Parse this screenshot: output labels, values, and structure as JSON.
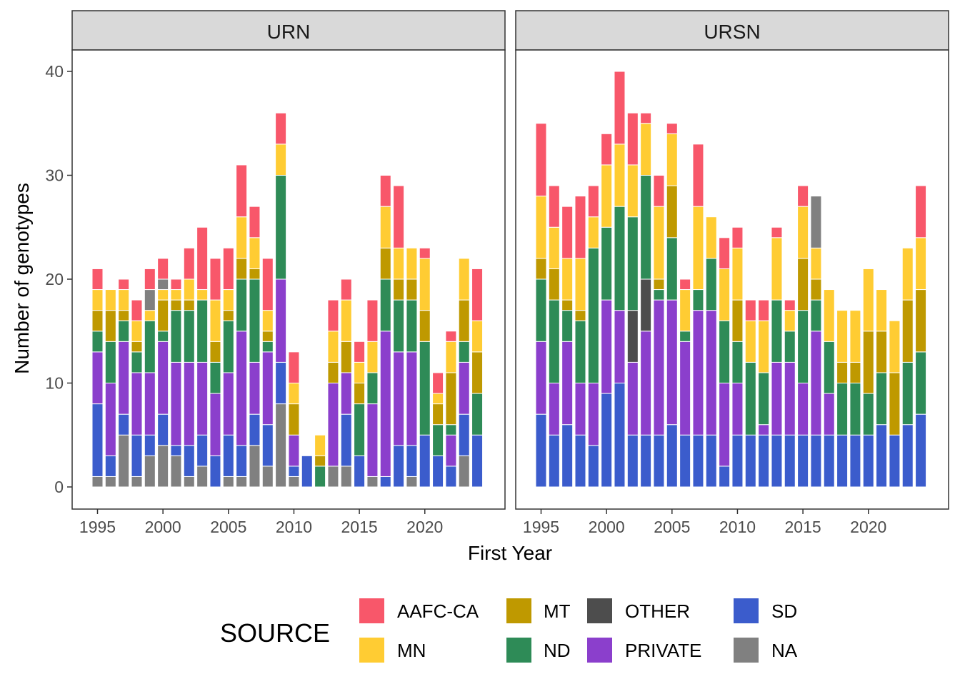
{
  "chart_data": {
    "type": "bar",
    "stacked": true,
    "xlabel": "First Year",
    "ylabel": "Number of genotypes",
    "xlim": [
      1993.1,
      2026.0
    ],
    "ylim": [
      -2,
      43
    ],
    "x_ticks": [
      1995,
      2000,
      2005,
      2010,
      2015,
      2020
    ],
    "y_ticks": [
      0,
      10,
      20,
      30,
      40
    ],
    "stack_order": [
      "NA",
      "SD",
      "PRIVATE",
      "OTHER",
      "ND",
      "MT",
      "MN",
      "AAFC-CA"
    ],
    "legend": {
      "title": "SOURCE",
      "placement": "bottom",
      "entries": [
        "AAFC-CA",
        "MN",
        "MT",
        "ND",
        "OTHER",
        "PRIVATE",
        "SD",
        "NA"
      ]
    },
    "colors": {
      "AAFC-CA": "#F8576A",
      "MN": "#FFCC33",
      "MT": "#BF9900",
      "ND": "#2E8B57",
      "OTHER": "#4D4D4D",
      "PRIVATE": "#8B3FCC",
      "SD": "#3B5CCC",
      "NA": "#808080"
    },
    "panels": [
      {
        "label": "URN",
        "years": [
          1995,
          1996,
          1997,
          1998,
          1999,
          2000,
          2001,
          2002,
          2003,
          2004,
          2005,
          2006,
          2007,
          2008,
          2009,
          2010,
          2011,
          2012,
          2013,
          2014,
          2015,
          2016,
          2017,
          2018,
          2019,
          2020,
          2021,
          2022,
          2023,
          2024
        ],
        "series": {
          "NA": [
            1,
            1,
            5,
            1,
            3,
            4,
            3,
            1,
            2,
            0,
            1,
            1,
            4,
            2,
            8,
            1,
            0,
            0,
            2,
            2,
            0,
            1,
            0,
            0,
            1,
            0,
            0,
            0,
            3,
            0
          ],
          "SD": [
            7,
            2,
            2,
            4,
            2,
            3,
            1,
            3,
            3,
            3,
            4,
            3,
            3,
            4,
            4,
            1,
            3,
            0,
            0,
            5,
            3,
            0,
            1,
            4,
            3,
            5,
            3,
            2,
            4,
            5
          ],
          "PRIVATE": [
            5,
            7,
            7,
            6,
            6,
            7,
            8,
            8,
            7,
            6,
            6,
            11,
            5,
            7,
            8,
            3,
            0,
            0,
            8,
            4,
            0,
            7,
            14,
            9,
            9,
            0,
            0,
            3,
            5,
            0
          ],
          "OTHER": [
            0,
            0,
            0,
            0,
            0,
            0,
            0,
            0,
            0,
            0,
            0,
            0,
            0,
            0,
            0,
            0,
            0,
            0,
            0,
            0,
            0,
            0,
            0,
            0,
            0,
            0,
            0,
            0,
            0,
            0
          ],
          "ND": [
            2,
            4,
            2,
            2,
            5,
            1,
            5,
            5,
            6,
            3,
            5,
            5,
            8,
            1,
            10,
            0,
            0,
            2,
            0,
            0,
            5,
            3,
            5,
            5,
            5,
            9,
            3,
            1,
            2,
            4
          ],
          "MT": [
            2,
            3,
            1,
            1,
            0,
            3,
            1,
            1,
            0,
            2,
            1,
            2,
            1,
            1,
            0,
            3,
            0,
            1,
            2,
            3,
            2,
            0,
            3,
            2,
            2,
            3,
            2,
            5,
            4,
            4
          ],
          "MN": [
            2,
            2,
            2,
            2,
            1,
            1,
            1,
            2,
            1,
            4,
            2,
            4,
            3,
            2,
            3,
            2,
            0,
            2,
            3,
            4,
            2,
            3,
            4,
            3,
            3,
            5,
            1,
            3,
            4,
            3
          ],
          "NA_top": [
            0,
            0,
            0,
            0,
            2,
            1,
            0,
            0,
            0,
            0,
            0,
            0,
            0,
            0,
            0,
            0,
            0,
            0,
            0,
            0,
            0,
            0,
            0,
            0,
            0,
            0,
            0,
            0,
            0,
            0
          ],
          "AAFC-CA": [
            2,
            0,
            1,
            2,
            2,
            2,
            1,
            3,
            6,
            4,
            4,
            5,
            3,
            5,
            3,
            3,
            0,
            0,
            3,
            2,
            2,
            4,
            3,
            6,
            0,
            1,
            2,
            1,
            0,
            5
          ]
        }
      },
      {
        "label": "URSN",
        "years": [
          1995,
          1996,
          1997,
          1998,
          1999,
          2000,
          2001,
          2002,
          2003,
          2004,
          2005,
          2006,
          2007,
          2008,
          2009,
          2010,
          2011,
          2012,
          2013,
          2014,
          2015,
          2016,
          2017,
          2018,
          2019,
          2020,
          2021,
          2022,
          2023,
          2024
        ],
        "series": {
          "NA": [
            0,
            0,
            0,
            0,
            0,
            0,
            0,
            0,
            0,
            0,
            0,
            0,
            0,
            0,
            0,
            0,
            0,
            0,
            0,
            0,
            0,
            0,
            0,
            0,
            0,
            0,
            0,
            0,
            0,
            0
          ],
          "SD": [
            7,
            5,
            6,
            5,
            4,
            9,
            10,
            5,
            5,
            5,
            6,
            5,
            5,
            5,
            2,
            5,
            5,
            5,
            5,
            5,
            5,
            5,
            5,
            5,
            5,
            5,
            6,
            5,
            6,
            7
          ],
          "PRIVATE": [
            7,
            5,
            8,
            5,
            6,
            9,
            7,
            7,
            10,
            13,
            12,
            9,
            12,
            12,
            8,
            5,
            0,
            1,
            7,
            7,
            5,
            10,
            4,
            0,
            0,
            0,
            0,
            0,
            0,
            0
          ],
          "OTHER": [
            0,
            0,
            0,
            0,
            0,
            0,
            0,
            5,
            5,
            0,
            0,
            0,
            0,
            0,
            0,
            0,
            0,
            0,
            0,
            0,
            0,
            0,
            0,
            0,
            0,
            0,
            0,
            0,
            0,
            0
          ],
          "ND": [
            6,
            8,
            3,
            6,
            13,
            7,
            10,
            9,
            10,
            1,
            6,
            1,
            2,
            5,
            6,
            4,
            7,
            5,
            6,
            3,
            7,
            3,
            5,
            5,
            5,
            4,
            5,
            0,
            6,
            6
          ],
          "MT": [
            2,
            3,
            1,
            1,
            0,
            0,
            0,
            0,
            0,
            1,
            5,
            0,
            0,
            0,
            0,
            4,
            0,
            0,
            0,
            0,
            5,
            2,
            0,
            2,
            2,
            6,
            4,
            6,
            6,
            6
          ],
          "MN": [
            6,
            4,
            4,
            5,
            3,
            6,
            6,
            5,
            5,
            7,
            5,
            4,
            8,
            4,
            5,
            5,
            4,
            5,
            6,
            2,
            5,
            3,
            5,
            5,
            5,
            6,
            4,
            5,
            5,
            5
          ],
          "NA_top": [
            0,
            0,
            0,
            0,
            0,
            0,
            0,
            0,
            0,
            0,
            0,
            0,
            0,
            0,
            0,
            0,
            0,
            0,
            0,
            0,
            0,
            5,
            0,
            0,
            0,
            0,
            0,
            0,
            0,
            0
          ],
          "AAFC-CA": [
            7,
            4,
            5,
            6,
            3,
            3,
            7,
            5,
            1,
            3,
            1,
            1,
            6,
            0,
            3,
            2,
            2,
            2,
            1,
            1,
            2,
            0,
            0,
            0,
            0,
            0,
            0,
            0,
            0,
            5
          ]
        }
      }
    ]
  }
}
